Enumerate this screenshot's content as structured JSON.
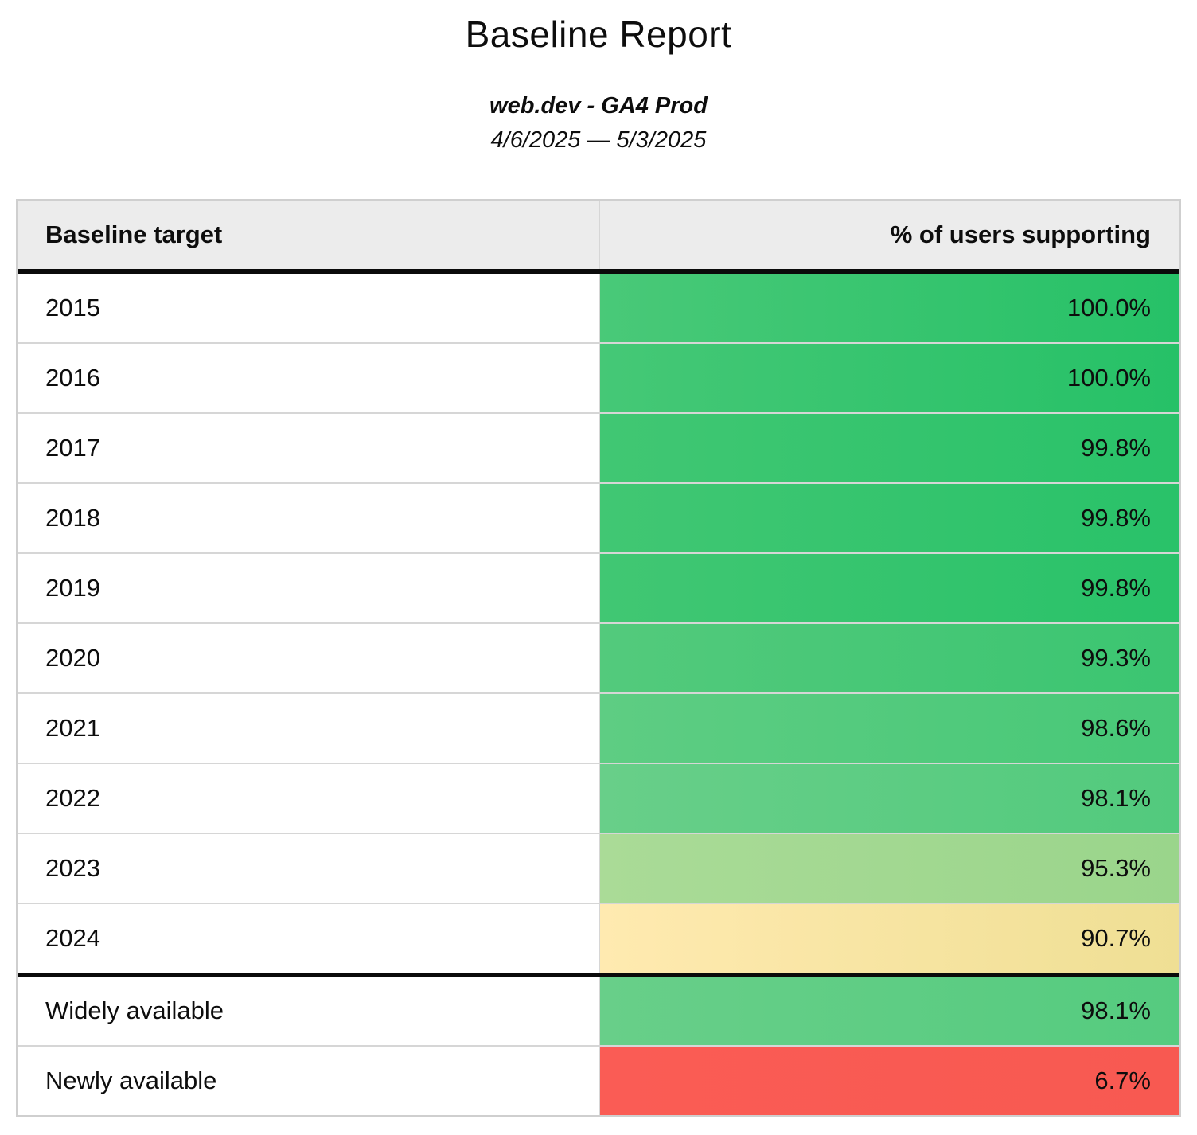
{
  "page": {
    "title": "Baseline Report",
    "subtitle": "web.dev - GA4 Prod",
    "date_range": "4/6/2025 — 5/3/2025"
  },
  "table": {
    "columns": [
      "Baseline target",
      "% of users supporting"
    ],
    "rows": [
      {
        "target": "2015",
        "value": "100.0%",
        "color_left": "#49c978",
        "color_right": "#26c167"
      },
      {
        "target": "2016",
        "value": "100.0%",
        "color_left": "#45c876",
        "color_right": "#26c167"
      },
      {
        "target": "2017",
        "value": "99.8%",
        "color_left": "#41c773",
        "color_right": "#29c269"
      },
      {
        "target": "2018",
        "value": "99.8%",
        "color_left": "#41c773",
        "color_right": "#29c269"
      },
      {
        "target": "2019",
        "value": "99.8%",
        "color_left": "#41c773",
        "color_right": "#29c269"
      },
      {
        "target": "2020",
        "value": "99.3%",
        "color_left": "#53ca7c",
        "color_right": "#3bc571"
      },
      {
        "target": "2021",
        "value": "98.6%",
        "color_left": "#5ecd83",
        "color_right": "#47c877"
      },
      {
        "target": "2022",
        "value": "98.1%",
        "color_left": "#68cf89",
        "color_right": "#52ca7d"
      },
      {
        "target": "2023",
        "value": "95.3%",
        "color_left": "#aadb97",
        "color_right": "#9ad58b"
      },
      {
        "target": "2024",
        "value": "90.7%",
        "color_left": "#ffeab0",
        "color_right": "#efdf94"
      },
      {
        "target": "Widely available",
        "value": "98.1%",
        "color_left": "#68cf89",
        "color_right": "#55cb7f",
        "divider_above": true
      },
      {
        "target": "Newly available",
        "value": "6.7%",
        "color_left": "#fa5c55",
        "color_right": "#f85951"
      }
    ],
    "colors": {
      "header_background": "#ececec",
      "grid_line": "#d6d6d6",
      "section_divider": "#0a0a0a",
      "good": "#26c167",
      "warn": "#efdf94",
      "bad": "#f85951"
    }
  },
  "chart_data": {
    "type": "table",
    "title": "Baseline Report",
    "subtitle": "web.dev - GA4 Prod",
    "date_range": "4/6/2025 — 5/3/2025",
    "columns": [
      "Baseline target",
      "% of users supporting"
    ],
    "rows": [
      [
        "2015",
        100.0
      ],
      [
        "2016",
        100.0
      ],
      [
        "2017",
        99.8
      ],
      [
        "2018",
        99.8
      ],
      [
        "2019",
        99.8
      ],
      [
        "2020",
        99.3
      ],
      [
        "2021",
        98.6
      ],
      [
        "2022",
        98.1
      ],
      [
        "2023",
        95.3
      ],
      [
        "2024",
        90.7
      ],
      [
        "Widely available",
        98.1
      ],
      [
        "Newly available",
        6.7
      ]
    ],
    "value_unit": "percent",
    "color_scale": "heatmap red(low) → yellow(~90) → green(high) on cell background",
    "layout": "two-column table, values right-aligned, thick divider between year rows and availability rows"
  }
}
